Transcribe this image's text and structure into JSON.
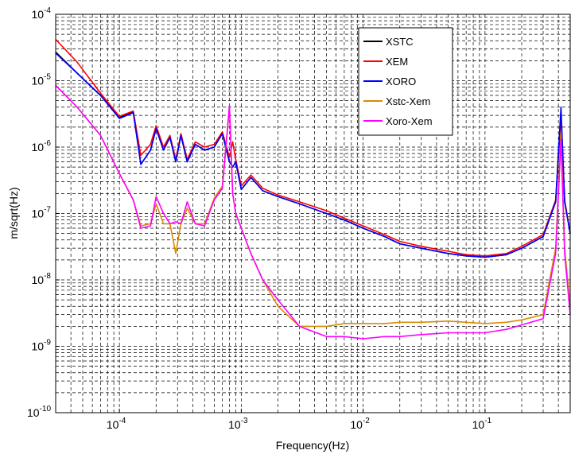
{
  "chart_data": {
    "type": "line",
    "title": "",
    "xlabel": "Frequency(Hz)",
    "ylabel": "m/sqrt(Hz)",
    "xscale": "log",
    "yscale": "log",
    "xlim": [
      3e-05,
      0.5
    ],
    "ylim": [
      1e-10,
      0.0001
    ],
    "grid": true,
    "legend_position": "top-right",
    "x_ticks": [
      {
        "base": "10",
        "exp": "-4",
        "value": 0.0001
      },
      {
        "base": "10",
        "exp": "-3",
        "value": 0.001
      },
      {
        "base": "10",
        "exp": "-2",
        "value": 0.01
      },
      {
        "base": "10",
        "exp": "-1",
        "value": 0.1
      }
    ],
    "y_ticks": [
      {
        "base": "10",
        "exp": "-10",
        "value": 1e-10
      },
      {
        "base": "10",
        "exp": "-9",
        "value": 1e-09
      },
      {
        "base": "10",
        "exp": "-8",
        "value": 1e-08
      },
      {
        "base": "10",
        "exp": "-7",
        "value": 1e-07
      },
      {
        "base": "10",
        "exp": "-6",
        "value": 1e-06
      },
      {
        "base": "10",
        "exp": "-5",
        "value": 1e-05
      },
      {
        "base": "10",
        "exp": "-4",
        "value": 0.0001
      }
    ],
    "series": [
      {
        "name": "XSTC",
        "color": "#000000",
        "x": [
          3e-05,
          4.5e-05,
          7e-05,
          0.0001,
          0.00013,
          0.00015,
          0.00018,
          0.0002,
          0.00023,
          0.00026,
          0.00029,
          0.00032,
          0.00036,
          0.00042,
          0.0005,
          0.0006,
          0.0007,
          0.0008,
          0.00085,
          0.0009,
          0.001,
          0.0012,
          0.0015,
          0.002,
          0.003,
          0.005,
          0.007,
          0.01,
          0.015,
          0.02,
          0.03,
          0.05,
          0.07,
          0.1,
          0.15,
          0.2,
          0.3,
          0.38,
          0.42,
          0.45,
          0.5
        ],
        "y": [
          2.7e-05,
          1.3e-05,
          6e-06,
          2.8e-06,
          3.4e-06,
          5.5e-07,
          9e-07,
          1.9e-06,
          9e-07,
          1.4e-06,
          6e-07,
          1.5e-06,
          6e-07,
          1.1e-06,
          9e-07,
          1e-06,
          1.6e-06,
          6e-07,
          5e-07,
          6e-07,
          2.3e-07,
          3.5e-07,
          2.2e-07,
          1.8e-07,
          1.4e-07,
          1e-07,
          8e-08,
          6e-08,
          4.5e-08,
          3.5e-08,
          3e-08,
          2.5e-08,
          2.3e-08,
          2.2e-08,
          2.4e-08,
          3e-08,
          4.5e-08,
          1.5e-07,
          3e-06,
          1.5e-07,
          5e-08
        ]
      },
      {
        "name": "XEM",
        "color": "#ff0000",
        "x": [
          3e-05,
          4.5e-05,
          7e-05,
          0.0001,
          0.00013,
          0.00015,
          0.00018,
          0.0002,
          0.00023,
          0.00026,
          0.00029,
          0.00032,
          0.00036,
          0.00042,
          0.0005,
          0.0006,
          0.0007,
          0.0008,
          0.00085,
          0.0009,
          0.001,
          0.0012,
          0.0015,
          0.002,
          0.003,
          0.005,
          0.007,
          0.01,
          0.015,
          0.02,
          0.03,
          0.05,
          0.07,
          0.1,
          0.15,
          0.2,
          0.3,
          0.38,
          0.42,
          0.45,
          0.5
        ],
        "y": [
          4.2e-05,
          1.9e-05,
          6.5e-06,
          2.9e-06,
          3.5e-06,
          7.5e-07,
          1.1e-06,
          2.1e-06,
          1e-06,
          1.5e-06,
          6.5e-07,
          1.6e-06,
          6.5e-07,
          1.2e-06,
          1e-06,
          1.1e-06,
          1.7e-06,
          7e-07,
          1.2e-06,
          6.5e-07,
          2.6e-07,
          3.8e-07,
          2.4e-07,
          1.9e-07,
          1.5e-07,
          1.1e-07,
          8.5e-08,
          6.5e-08,
          4.8e-08,
          3.8e-08,
          3.2e-08,
          2.7e-08,
          2.4e-08,
          2.3e-08,
          2.5e-08,
          3.2e-08,
          4.8e-08,
          1.6e-07,
          3.2e-06,
          1.6e-07,
          5.2e-08
        ]
      },
      {
        "name": "XORO",
        "color": "#0000ff",
        "x": [
          3e-05,
          4.5e-05,
          7e-05,
          0.0001,
          0.00013,
          0.00015,
          0.00018,
          0.0002,
          0.00023,
          0.00026,
          0.00029,
          0.00032,
          0.00036,
          0.00042,
          0.0005,
          0.0006,
          0.0007,
          0.0008,
          0.00085,
          0.0009,
          0.001,
          0.0012,
          0.0015,
          0.002,
          0.003,
          0.005,
          0.007,
          0.01,
          0.015,
          0.02,
          0.03,
          0.05,
          0.07,
          0.1,
          0.15,
          0.2,
          0.3,
          0.38,
          0.42,
          0.45,
          0.5
        ],
        "y": [
          2.6e-05,
          1.3e-05,
          6e-06,
          2.7e-06,
          3.3e-06,
          5.5e-07,
          9e-07,
          1.9e-06,
          9e-07,
          1.4e-06,
          6e-07,
          1.5e-06,
          6e-07,
          1.1e-06,
          9e-07,
          1e-06,
          1.6e-06,
          6e-07,
          5e-07,
          6e-07,
          2.3e-07,
          3.5e-07,
          2.2e-07,
          1.8e-07,
          1.4e-07,
          1e-07,
          8e-08,
          6e-08,
          4.5e-08,
          3.5e-08,
          3e-08,
          2.5e-08,
          2.3e-08,
          2.2e-08,
          2.4e-08,
          3e-08,
          4.5e-08,
          1.5e-07,
          4e-06,
          1.5e-07,
          5e-08
        ]
      },
      {
        "name": "Xstc-Xem",
        "color": "#d98c00",
        "x": [
          3e-05,
          4.5e-05,
          7e-05,
          0.0001,
          0.00013,
          0.00015,
          0.00018,
          0.0002,
          0.00023,
          0.00026,
          0.00029,
          0.00032,
          0.00036,
          0.00042,
          0.0005,
          0.0006,
          0.0007,
          0.0008,
          0.00085,
          0.0009,
          0.001,
          0.0012,
          0.0015,
          0.002,
          0.003,
          0.005,
          0.007,
          0.01,
          0.015,
          0.02,
          0.03,
          0.05,
          0.07,
          0.1,
          0.15,
          0.2,
          0.3,
          0.38,
          0.42,
          0.45,
          0.5
        ],
        "y": [
          8.5e-06,
          4e-06,
          1.5e-06,
          4e-07,
          1.6e-07,
          6.5e-08,
          7e-08,
          1.4e-07,
          7e-08,
          7e-08,
          2.5e-08,
          7e-08,
          1.2e-07,
          7e-08,
          7e-08,
          1.7e-07,
          2.6e-07,
          4e-06,
          2e-07,
          1e-07,
          6e-08,
          2.5e-08,
          1e-08,
          4e-09,
          2e-09,
          2e-09,
          2.2e-09,
          2.2e-09,
          2.2e-09,
          2.3e-09,
          2.3e-09,
          2.4e-09,
          2.3e-09,
          2.2e-09,
          2.3e-09,
          2.5e-09,
          3e-09,
          3e-08,
          1.6e-06,
          3e-08,
          4e-09
        ]
      },
      {
        "name": "Xoro-Xem",
        "color": "#ff00ff",
        "x": [
          3e-05,
          4.5e-05,
          7e-05,
          0.0001,
          0.00013,
          0.00015,
          0.00018,
          0.0002,
          0.00023,
          0.00026,
          0.00029,
          0.00032,
          0.00036,
          0.00042,
          0.0005,
          0.0006,
          0.0007,
          0.0008,
          0.00085,
          0.0009,
          0.001,
          0.0012,
          0.0015,
          0.002,
          0.003,
          0.005,
          0.007,
          0.01,
          0.015,
          0.02,
          0.03,
          0.05,
          0.07,
          0.1,
          0.15,
          0.2,
          0.3,
          0.38,
          0.42,
          0.45,
          0.5
        ],
        "y": [
          8.5e-06,
          4e-06,
          1.5e-06,
          4e-07,
          1.6e-07,
          6e-08,
          6.5e-08,
          1.8e-07,
          1e-07,
          7e-08,
          7.5e-08,
          7e-08,
          1.5e-07,
          7e-08,
          6.5e-08,
          1.6e-07,
          2.4e-07,
          4.2e-06,
          2e-07,
          1e-07,
          6e-08,
          2.5e-08,
          1e-08,
          5e-09,
          2e-09,
          1.4e-09,
          1.4e-09,
          1.3e-09,
          1.4e-09,
          1.4e-09,
          1.5e-09,
          1.6e-09,
          1.6e-09,
          1.6e-09,
          1.8e-09,
          2.1e-09,
          2.6e-09,
          2.5e-08,
          1.3e-06,
          2.5e-08,
          3e-09
        ]
      }
    ]
  }
}
